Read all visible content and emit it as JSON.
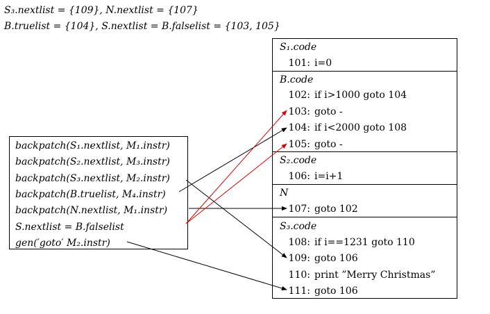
{
  "header": {
    "line1": "S₃.nextlist = {109}, N.nextlist = {107}",
    "line2": "B.truelist = {104}, S.nextlist = B.falselist = {103, 105}"
  },
  "sections": [
    {
      "title": "S₁.code",
      "lines": [
        {
          "num": "101:",
          "text": "i=0"
        }
      ]
    },
    {
      "title": "B.code",
      "lines": [
        {
          "num": "102:",
          "text": "if i>1000 goto 104"
        },
        {
          "num": "103:",
          "text": "goto -"
        },
        {
          "num": "104:",
          "text": "if i<2000 goto 108"
        },
        {
          "num": "105:",
          "text": "goto -"
        }
      ]
    },
    {
      "title": "S₂.code",
      "lines": [
        {
          "num": "106:",
          "text": "i=i+1"
        }
      ]
    },
    {
      "title": "N",
      "lines": [
        {
          "num": "107:",
          "text": "goto 102"
        }
      ]
    },
    {
      "title": "S₃.code",
      "lines": [
        {
          "num": "108:",
          "text": "if i==1231 goto 110"
        },
        {
          "num": "109:",
          "text": "goto 106"
        },
        {
          "num": "110:",
          "text": "print ”Merry Christmas”"
        },
        {
          "num": "111:",
          "text": "goto 106"
        }
      ]
    }
  ],
  "actions": [
    "backpatch(S₁.nextlist, M₁.instr)",
    "backpatch(S₂.nextlist, M₃.instr)",
    "backpatch(S₃.nextlist, M₂.instr)",
    "backpatch(B.truelist, M₄.instr)",
    "backpatch(N.nextlist, M₁.instr)",
    "S.nextlist = B.falselist",
    "gen(′goto′ M₂.instr)"
  ],
  "colors": {
    "black_arrow": "#000000",
    "red_arrow": "#e00000"
  }
}
